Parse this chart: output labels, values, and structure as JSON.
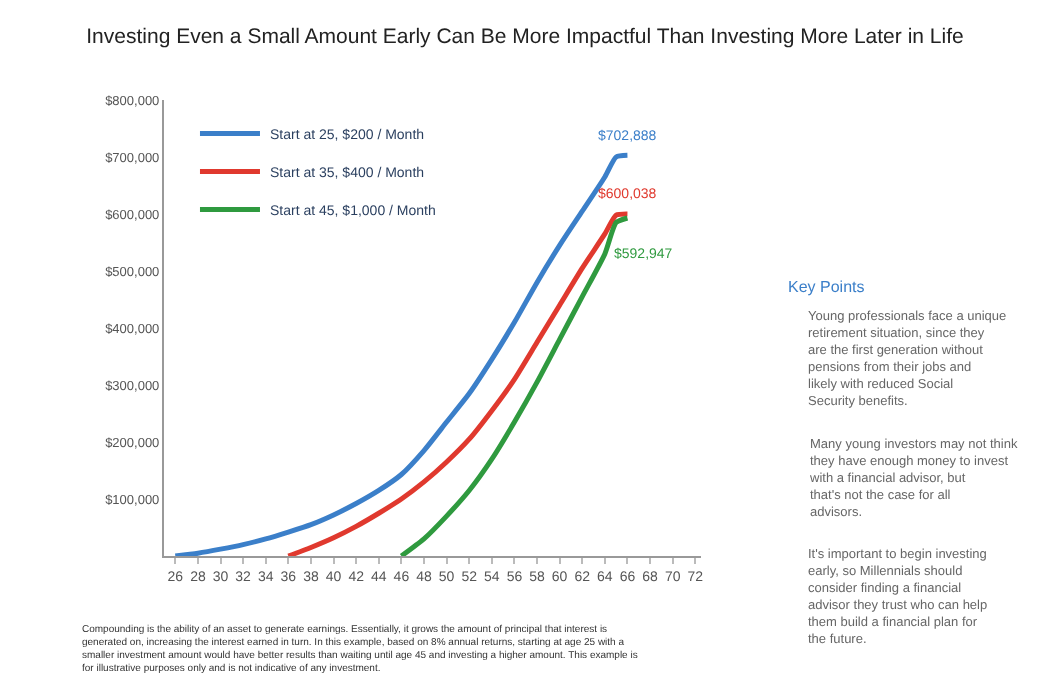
{
  "chart_data": {
    "type": "line",
    "title": "Investing Even a Small Amount Early Can Be More Impactful Than Investing More Later in Life",
    "series": [
      {
        "name": "Start at 25, $200 / Month",
        "color": "#3b7fc9",
        "x": [
          26,
          28,
          30,
          32,
          34,
          36,
          38,
          40,
          42,
          44,
          46,
          48,
          50,
          52,
          54,
          56,
          58,
          60,
          62,
          64,
          65,
          66
        ],
        "values": [
          0,
          5000,
          12000,
          20000,
          30000,
          42000,
          55000,
          72000,
          92000,
          115000,
          143000,
          185000,
          235000,
          285000,
          345000,
          410000,
          480000,
          545000,
          605000,
          665000,
          700000,
          702888
        ]
      },
      {
        "name": "Start at 35, $400 / Month",
        "color": "#e0392e",
        "x": [
          36,
          38,
          40,
          42,
          44,
          46,
          48,
          50,
          52,
          54,
          56,
          58,
          60,
          62,
          64,
          65,
          66
        ],
        "values": [
          0,
          15000,
          32000,
          52000,
          75000,
          100000,
          130000,
          165000,
          205000,
          255000,
          310000,
          375000,
          440000,
          505000,
          565000,
          598000,
          600038
        ]
      },
      {
        "name": "Start at 45, $1,000 / Month",
        "color": "#2f9a3f",
        "x": [
          46,
          48,
          50,
          52,
          54,
          56,
          58,
          60,
          62,
          64,
          65,
          66
        ],
        "values": [
          0,
          30000,
          70000,
          115000,
          170000,
          235000,
          305000,
          380000,
          455000,
          530000,
          585000,
          592947
        ]
      }
    ],
    "xlim": [
      25,
      72.5
    ],
    "xticks": [
      26,
      28,
      30,
      32,
      34,
      36,
      38,
      40,
      42,
      44,
      46,
      48,
      50,
      52,
      54,
      56,
      58,
      60,
      62,
      64,
      66,
      68,
      70,
      72
    ],
    "ylim": [
      0,
      800000
    ],
    "yticks": [
      {
        "value": 100000,
        "label": "$100,000"
      },
      {
        "value": 200000,
        "label": "$200,000"
      },
      {
        "value": 300000,
        "label": "$300,000"
      },
      {
        "value": 400000,
        "label": "$400,000"
      },
      {
        "value": 500000,
        "label": "$500,000"
      },
      {
        "value": 600000,
        "label": "$600,000"
      },
      {
        "value": 700000,
        "label": "$700,000"
      },
      {
        "value": 800000,
        "label": "$800,000"
      }
    ],
    "legend": "top left",
    "annotations": [
      "$702,888",
      "$600,038",
      "$592,947",
      "Key Points",
      "Young professionals face a unique retirement situation, since they are the first generation without pensions from their jobs and likely with reduced Social Security benefits.",
      "Many young investors may not think they have enough money to invest with a financial advisor, but that's not the case for all advisors.",
      "It's important to begin investing early, so Millennials should consider finding a financial advisor they trust who can help them build a financial plan for the future.",
      "Compounding is the ability of an asset to generate earnings. Essentially, it grows the amount of principal that interest is generated on, increasing the interest earned in turn. In this example, based on 8% annual returns, starting at age 25 with a smaller investment amount would have better results than waiting until age 45 and investing a higher amount. This example is for illustrative purposes only and is not indicative of any investment."
    ]
  }
}
